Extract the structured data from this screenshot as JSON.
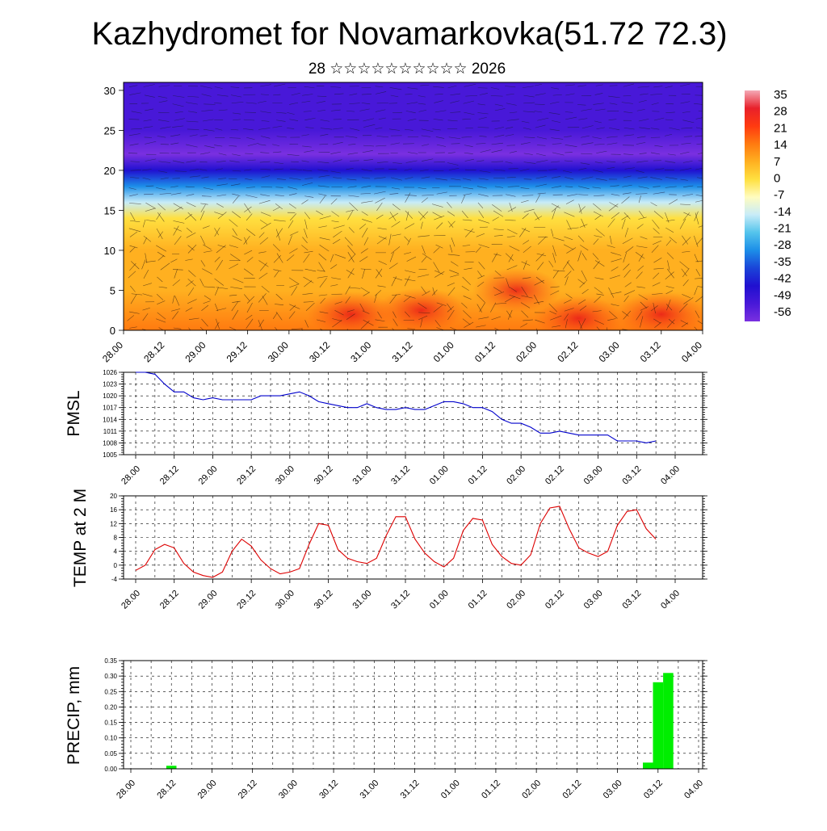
{
  "header": {
    "title": "Kazhydromet for Novamarkovka(51.72 72.3)",
    "subtitle": "28 ☆☆☆☆☆☆☆☆☆☆ 2026"
  },
  "time_labels": [
    "28.00",
    "28.12",
    "29.00",
    "29.12",
    "30.00",
    "30.12",
    "31.00",
    "31.12",
    "01.00",
    "01.12",
    "02.00",
    "02.12",
    "03.00",
    "03.12",
    "04.00"
  ],
  "chart_data": [
    {
      "type": "heatmap",
      "id": "cross-section",
      "title": "",
      "ylim": [
        0,
        31
      ],
      "yticks": [
        0,
        5,
        10,
        15,
        20,
        25,
        30
      ],
      "colorbar": {
        "labels": [
          "35",
          "28",
          "21",
          "14",
          "7",
          "0",
          "-7",
          "-14",
          "-21",
          "-28",
          "-35",
          "-42",
          "-49",
          "-56"
        ],
        "colors": [
          "#f4a9b6",
          "#e8202a",
          "#ff3a10",
          "#ff7a10",
          "#ffb020",
          "#ffe040",
          "#fffcc0",
          "#c8ecf8",
          "#54c4ec",
          "#1c8ee8",
          "#1a44d8",
          "#2010d0",
          "#4818d8",
          "#7a30e0"
        ]
      },
      "temperature_profile": [
        {
          "level": 0,
          "value": 12
        },
        {
          "level": 5,
          "value": 9
        },
        {
          "level": 10,
          "value": 6
        },
        {
          "level": 14,
          "value": 1
        },
        {
          "level": 16,
          "value": -14
        },
        {
          "level": 18,
          "value": -30
        },
        {
          "level": 20,
          "value": -42
        },
        {
          "level": 22,
          "value": -56
        },
        {
          "level": 25,
          "value": -50
        },
        {
          "level": 31,
          "value": -48
        }
      ],
      "warm_spots": [
        {
          "time_index": 5.5,
          "level": 2,
          "value": 21
        },
        {
          "time_index": 7.2,
          "level": 2.5,
          "value": 18
        },
        {
          "time_index": 11.0,
          "level": 1.5,
          "value": 28
        },
        {
          "time_index": 13.0,
          "level": 2.0,
          "value": 22
        },
        {
          "time_index": 9.5,
          "level": 5,
          "value": 14
        }
      ]
    },
    {
      "type": "line",
      "id": "pmsl",
      "ylabel": "PMSL",
      "ylim": [
        1005,
        1026
      ],
      "yticks": [
        1005,
        1008,
        1011,
        1014,
        1017,
        1020,
        1023,
        1026
      ],
      "color": "#0000cc",
      "x": [
        0,
        0.25,
        0.5,
        0.75,
        1,
        1.25,
        1.5,
        1.75,
        2,
        2.25,
        2.5,
        2.75,
        3,
        3.25,
        3.5,
        3.75,
        4,
        4.25,
        4.5,
        4.75,
        5,
        5.25,
        5.5,
        5.75,
        6,
        6.25,
        6.5,
        6.75,
        7,
        7.25,
        7.5,
        7.75,
        8,
        8.25,
        8.5,
        8.75,
        9,
        9.25,
        9.5,
        9.75,
        10,
        10.25,
        10.5,
        10.75,
        11,
        11.25,
        11.5,
        11.75,
        12,
        12.25,
        12.5,
        12.75,
        13,
        13.25,
        13.5
      ],
      "values": [
        1026,
        1026,
        1025.5,
        1023,
        1021,
        1021,
        1019.5,
        1019,
        1019.5,
        1019,
        1019,
        1019,
        1019,
        1020,
        1020,
        1020,
        1020.5,
        1021,
        1020,
        1018.5,
        1018,
        1017.5,
        1017,
        1017,
        1018,
        1017,
        1016.5,
        1016.5,
        1017,
        1016.5,
        1016.5,
        1017.5,
        1018.5,
        1018.5,
        1018,
        1017,
        1017,
        1016,
        1014,
        1013,
        1013,
        1012,
        1010.5,
        1010.5,
        1011,
        1010.5,
        1010,
        1010,
        1010,
        1010,
        1008.5,
        1008.5,
        1008.5,
        1008,
        1008.5
      ]
    },
    {
      "type": "line",
      "id": "temp2m",
      "ylabel": "TEMP at 2 M",
      "ylim": [
        -4,
        20
      ],
      "yticks": [
        -4,
        0,
        4,
        8,
        12,
        16,
        20
      ],
      "color": "#dd0000",
      "x": [
        0,
        0.25,
        0.5,
        0.75,
        1,
        1.25,
        1.5,
        1.75,
        2,
        2.25,
        2.5,
        2.75,
        3,
        3.25,
        3.5,
        3.75,
        4,
        4.25,
        4.5,
        4.75,
        5,
        5.25,
        5.5,
        5.75,
        6,
        6.25,
        6.5,
        6.75,
        7,
        7.25,
        7.5,
        7.75,
        8,
        8.25,
        8.5,
        8.75,
        9,
        9.25,
        9.5,
        9.75,
        10,
        10.25,
        10.5,
        10.75,
        11,
        11.25,
        11.5,
        11.75,
        12,
        12.25,
        12.5,
        12.75,
        13,
        13.25,
        13.5
      ],
      "values": [
        -1.5,
        0,
        4.5,
        6,
        5,
        0.5,
        -2,
        -3,
        -3.5,
        -2,
        4,
        7.5,
        5.5,
        1.5,
        -1,
        -2.5,
        -2,
        -1,
        6,
        12,
        11.5,
        4.5,
        2,
        1,
        0.5,
        2,
        8.5,
        14,
        14,
        7.5,
        3.5,
        1,
        -0.5,
        2,
        10,
        13.5,
        13,
        6,
        2.5,
        0.5,
        0,
        3,
        12,
        16.5,
        17,
        10.5,
        5,
        3.5,
        2.5,
        4,
        11.5,
        15.5,
        16,
        10.5,
        7.5
      ]
    },
    {
      "type": "bar",
      "id": "precip",
      "ylabel": "PRECIP, mm",
      "ylim": [
        0,
        0.35
      ],
      "yticks": [
        0.0,
        0.05,
        0.1,
        0.15,
        0.2,
        0.25,
        0.3,
        0.35
      ],
      "ytick_labels": [
        "0.00",
        "0.05",
        "0.10",
        "0.15",
        "0.20",
        "0.25",
        "0.30",
        "0.35"
      ],
      "color": "#00ee00",
      "bars": [
        {
          "x": 1.0,
          "value": 0.01
        },
        {
          "x": 12.75,
          "value": 0.02
        },
        {
          "x": 13.0,
          "value": 0.28
        },
        {
          "x": 13.25,
          "value": 0.31
        }
      ]
    }
  ]
}
